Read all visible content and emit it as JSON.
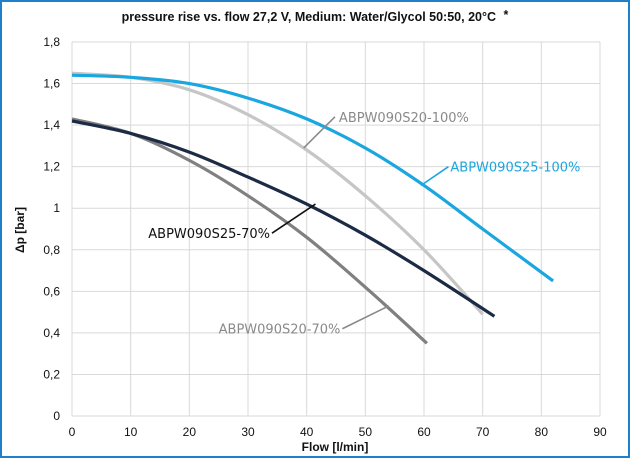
{
  "chart_data": {
    "type": "line",
    "title": "pressure rise vs. flow 27,2 V, Medium: Water/Glycol 50:50, 20°C",
    "title_mark": "*",
    "xlabel": "Flow [l/min]",
    "ylabel": "Δp [bar]",
    "xlim": [
      0,
      90
    ],
    "ylim": [
      0,
      1.8
    ],
    "xticks": [
      0,
      10,
      20,
      30,
      40,
      50,
      60,
      70,
      80,
      90
    ],
    "yticks": [
      0,
      0.2,
      0.4,
      0.6,
      0.8,
      1,
      1.2,
      1.4,
      1.6,
      1.8
    ],
    "xtick_labels": [
      "0",
      "10",
      "20",
      "30",
      "40",
      "50",
      "60",
      "70",
      "80",
      "90"
    ],
    "ytick_labels": [
      "0",
      "0,2",
      "0,4",
      "0,6",
      "0,8",
      "1",
      "1,2",
      "1,4",
      "1,6",
      "1,8"
    ],
    "grid": true,
    "series": [
      {
        "name": "ABPW090S25-100%",
        "color": "#1aa6df",
        "x": [
          0,
          10,
          20,
          30,
          40,
          50,
          60,
          70,
          82
        ],
        "y": [
          1.64,
          1.63,
          1.6,
          1.53,
          1.43,
          1.29,
          1.11,
          0.9,
          0.65
        ]
      },
      {
        "name": "ABPW090S20-100%",
        "color": "#c6c6c6",
        "x": [
          0,
          10,
          20,
          30,
          40,
          50,
          60,
          70
        ],
        "y": [
          1.65,
          1.63,
          1.57,
          1.45,
          1.28,
          1.06,
          0.8,
          0.49
        ]
      },
      {
        "name": "ABPW090S25-70%",
        "color": "#1c2b45",
        "x": [
          0,
          10,
          20,
          30,
          40,
          50,
          60,
          72
        ],
        "y": [
          1.42,
          1.36,
          1.27,
          1.15,
          1.02,
          0.87,
          0.7,
          0.48
        ]
      },
      {
        "name": "ABPW090S20-70%",
        "color": "#808080",
        "x": [
          0,
          10,
          20,
          30,
          40,
          50,
          60.5
        ],
        "y": [
          1.43,
          1.36,
          1.23,
          1.06,
          0.86,
          0.62,
          0.35
        ]
      }
    ],
    "annotations": [
      {
        "label": "ABPW090S20-100%",
        "series": 1,
        "text_x": 45.5,
        "text_y": 1.44,
        "point_x": 39.5,
        "point_y": 1.29,
        "color": "#8a8a8a"
      },
      {
        "label": "ABPW090S25-100%",
        "series": 0,
        "text_x": 64.5,
        "text_y": 1.2,
        "point_x": 59.5,
        "point_y": 1.11,
        "color": "#1aa6df"
      },
      {
        "label": "ABPW090S25-70%",
        "series": 2,
        "text_x": 13,
        "text_y": 0.88,
        "point_x": 41.5,
        "point_y": 1.02,
        "color": "#111111"
      },
      {
        "label": "ABPW090S20-70%",
        "series": 3,
        "text_x": 25,
        "text_y": 0.42,
        "point_x": 54,
        "point_y": 0.53,
        "color": "#8a8a8a"
      }
    ]
  }
}
